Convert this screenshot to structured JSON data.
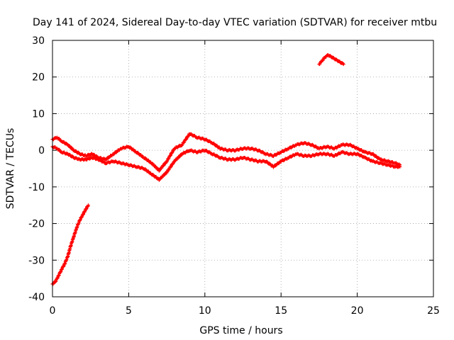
{
  "chart_data": {
    "type": "scatter",
    "title": "Day 141 of 2024, Sidereal Day-to-day VTEC variation (SDTVAR) for receiver mtbu",
    "xlabel": "GPS time / hours",
    "ylabel": "SDTVAR / TECUs",
    "xlim": [
      0,
      25
    ],
    "ylim": [
      -40,
      30
    ],
    "xticks": [
      "0",
      "5",
      "10",
      "15",
      "20",
      "25"
    ],
    "yticks": [
      "-40",
      "-30",
      "-20",
      "-10",
      "0",
      "10",
      "20",
      "30"
    ],
    "grid": true,
    "series": [
      {
        "name": "steep-rise",
        "color": "#ff0000",
        "x": [
          0.0,
          0.2,
          0.4,
          0.6,
          0.8,
          1.0,
          1.2,
          1.4,
          1.6,
          1.8,
          2.0,
          2.2,
          2.35
        ],
        "y": [
          -36.5,
          -35.8,
          -34.2,
          -32.5,
          -31.0,
          -29.0,
          -26.0,
          -23.5,
          -21.0,
          -19.0,
          -17.5,
          -16.0,
          -15.0
        ]
      },
      {
        "name": "main-band-upper",
        "color": "#ff0000",
        "x": [
          0.0,
          0.3,
          0.6,
          1.0,
          1.4,
          1.8,
          2.2,
          2.6,
          3.0,
          3.5,
          4.0,
          4.5,
          5.0,
          5.5,
          6.0,
          6.5,
          7.0,
          7.5,
          8.0,
          8.5,
          9.0,
          9.5,
          10.0,
          10.5,
          11.0,
          11.5,
          12.0,
          12.5,
          13.0,
          13.5,
          14.0,
          14.5,
          15.0,
          15.5,
          16.0,
          16.5,
          17.0,
          17.5,
          18.0,
          18.5,
          19.0,
          19.5,
          20.0,
          20.5,
          21.0,
          21.5,
          22.0,
          22.5,
          22.8
        ],
        "y": [
          3.0,
          3.5,
          2.5,
          1.5,
          0.0,
          -1.0,
          -1.5,
          -1.0,
          -2.0,
          -2.5,
          -1.0,
          0.5,
          1.0,
          -0.5,
          -2.0,
          -3.5,
          -5.5,
          -3.0,
          0.5,
          1.5,
          4.5,
          3.5,
          3.0,
          2.0,
          0.5,
          0.0,
          0.0,
          0.5,
          0.5,
          0.0,
          -1.0,
          -1.5,
          -0.5,
          0.5,
          1.5,
          2.0,
          1.5,
          0.5,
          1.0,
          0.5,
          1.5,
          1.5,
          0.5,
          -0.5,
          -1.0,
          -2.5,
          -3.0,
          -3.5,
          -4.0
        ]
      },
      {
        "name": "main-band-lower",
        "color": "#ff0000",
        "x": [
          0.0,
          0.3,
          0.6,
          1.0,
          1.4,
          1.8,
          2.2,
          2.6,
          3.0,
          3.5,
          4.0,
          4.5,
          5.0,
          5.5,
          6.0,
          6.5,
          7.0,
          7.5,
          8.0,
          8.5,
          9.0,
          9.5,
          10.0,
          10.5,
          11.0,
          11.5,
          12.0,
          12.5,
          13.0,
          13.5,
          14.0,
          14.5,
          15.0,
          15.5,
          16.0,
          16.5,
          17.0,
          17.5,
          18.0,
          18.5,
          19.0,
          19.5,
          20.0,
          20.5,
          21.0,
          21.5,
          22.0,
          22.5,
          22.8
        ],
        "y": [
          1.0,
          0.5,
          -0.5,
          -1.0,
          -2.0,
          -2.5,
          -2.5,
          -2.0,
          -2.5,
          -3.5,
          -3.0,
          -3.5,
          -4.0,
          -4.5,
          -5.0,
          -6.5,
          -8.0,
          -6.0,
          -3.0,
          -1.0,
          0.0,
          -0.5,
          0.0,
          -1.0,
          -2.0,
          -2.5,
          -2.5,
          -2.0,
          -2.5,
          -3.0,
          -3.0,
          -4.5,
          -3.0,
          -2.0,
          -1.0,
          -1.5,
          -1.5,
          -1.0,
          -1.0,
          -1.5,
          -0.5,
          -1.0,
          -1.0,
          -2.0,
          -3.0,
          -3.5,
          -4.0,
          -4.5,
          -4.5
        ]
      },
      {
        "name": "upper-arc",
        "color": "#ff0000",
        "x": [
          17.5,
          17.7,
          17.9,
          18.1,
          18.3,
          18.5,
          18.7,
          18.9,
          19.1
        ],
        "y": [
          23.5,
          24.5,
          25.5,
          26.0,
          25.5,
          25.0,
          24.5,
          24.0,
          23.5
        ]
      }
    ]
  }
}
